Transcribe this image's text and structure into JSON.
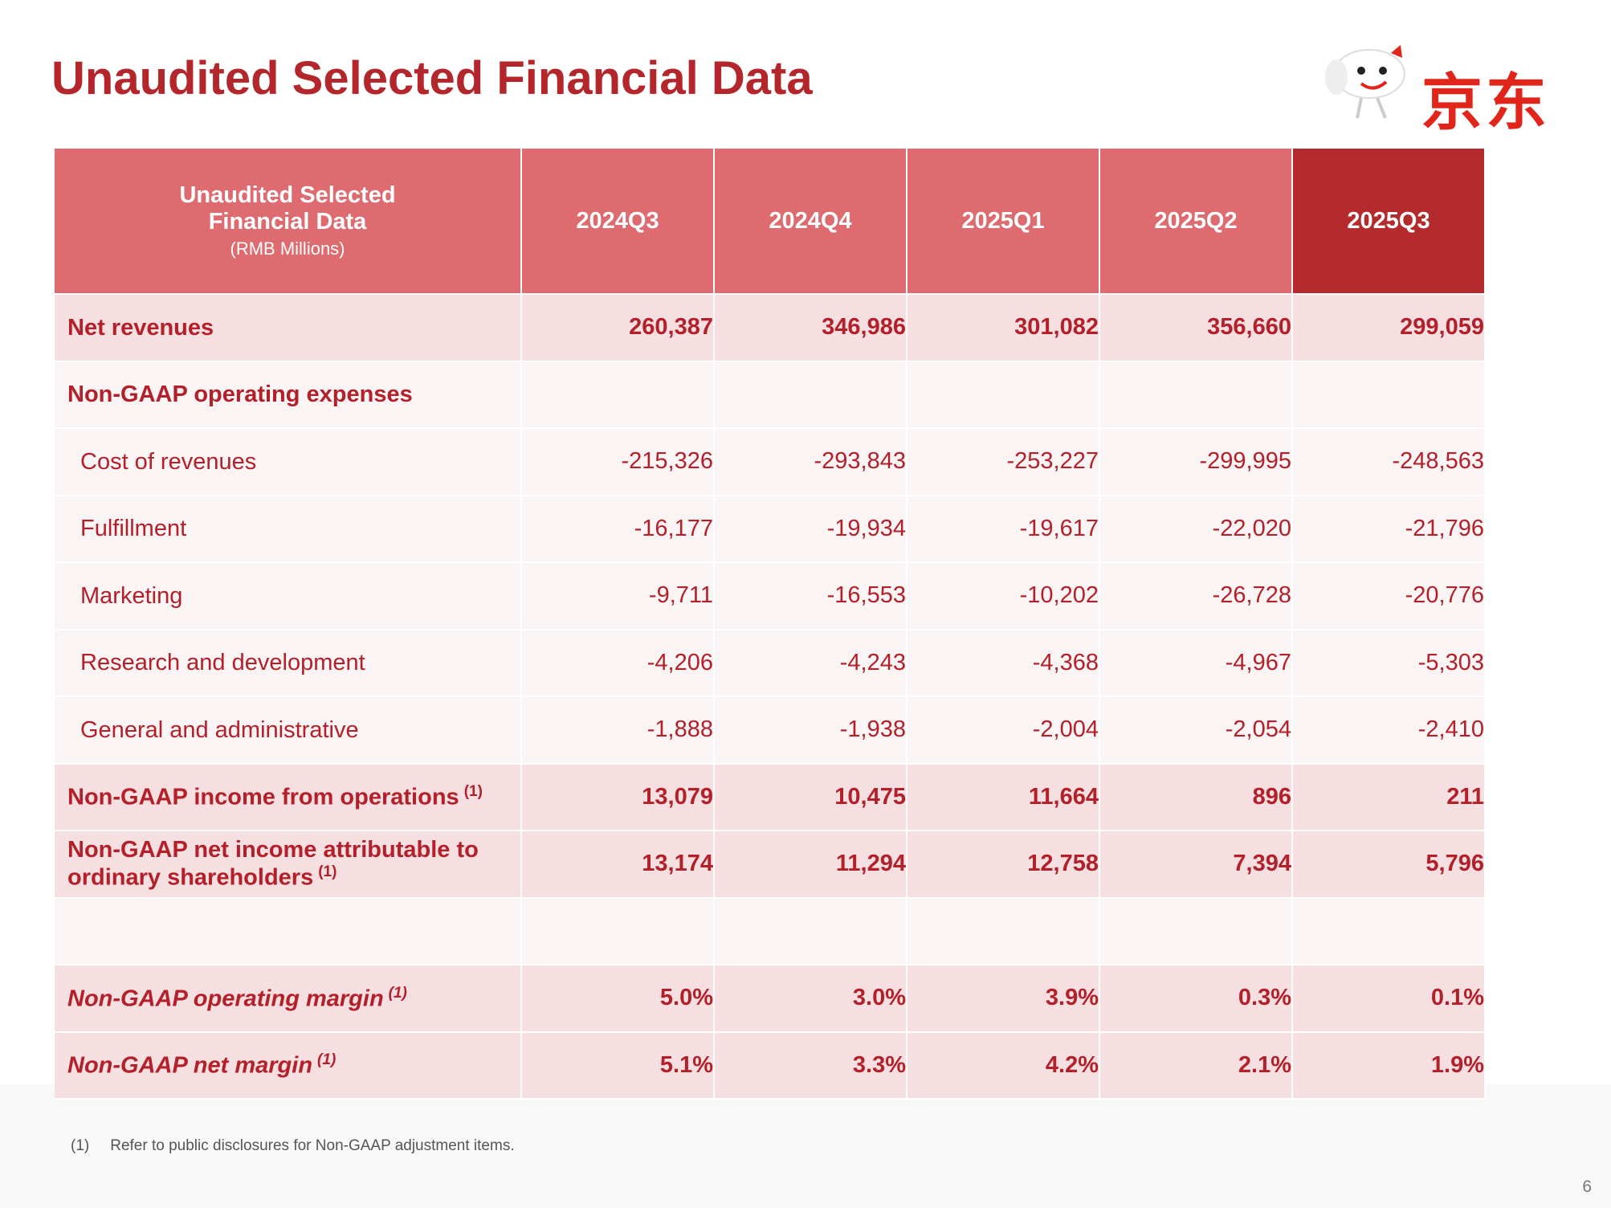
{
  "header": {
    "title": "Unaudited Selected Financial Data",
    "logo_text": "京东"
  },
  "table": {
    "columns": {
      "label": "Unaudited Selected Financial Data",
      "unit": "(RMB Millions)",
      "periods": [
        "2024Q3",
        "2024Q4",
        "2025Q1",
        "2025Q2",
        "2025Q3"
      ]
    },
    "rows": [
      {
        "label": "Net revenues",
        "style": "total",
        "values": [
          "260,387",
          "346,986",
          "301,082",
          "356,660",
          "299,059"
        ]
      },
      {
        "label": "Non-GAAP operating expenses",
        "style": "section"
      },
      {
        "label": "Cost of revenues",
        "style": "item",
        "values": [
          "-215,326",
          "-293,843",
          "-253,227",
          "-299,995",
          "-248,563"
        ]
      },
      {
        "label": "Fulfillment",
        "style": "item",
        "values": [
          "-16,177",
          "-19,934",
          "-19,617",
          "-22,020",
          "-21,796"
        ]
      },
      {
        "label": "Marketing",
        "style": "item",
        "values": [
          "-9,711",
          "-16,553",
          "-10,202",
          "-26,728",
          "-20,776"
        ]
      },
      {
        "label": "Research and development",
        "style": "item",
        "values": [
          "-4,206",
          "-4,243",
          "-4,368",
          "-4,967",
          "-5,303"
        ]
      },
      {
        "label": "General and administrative",
        "style": "item",
        "values": [
          "-1,888",
          "-1,938",
          "-2,004",
          "-2,054",
          "-2,410"
        ]
      },
      {
        "label": "Non-GAAP income from operations",
        "note": "(1)",
        "style": "total",
        "values": [
          "13,079",
          "10,475",
          "11,664",
          "896",
          "211"
        ]
      },
      {
        "label": "Non-GAAP net income attributable to ordinary shareholders",
        "note": "(1)",
        "style": "total",
        "values": [
          "13,174",
          "11,294",
          "12,758",
          "7,394",
          "5,796"
        ]
      }
    ],
    "margin_rows": [
      {
        "label": "Non-GAAP operating margin",
        "note": "(1)",
        "style": "margin",
        "values": [
          "5.0%",
          "3.0%",
          "3.9%",
          "0.3%",
          "0.1%"
        ]
      },
      {
        "label": "Non-GAAP net margin",
        "note": "(1)",
        "style": "margin",
        "values": [
          "5.1%",
          "3.3%",
          "4.2%",
          "2.1%",
          "1.9%"
        ]
      }
    ]
  },
  "footnote": {
    "marker": "(1)",
    "text": "Refer to public disclosures for Non-GAAP adjustment items."
  },
  "page_number": "6"
}
